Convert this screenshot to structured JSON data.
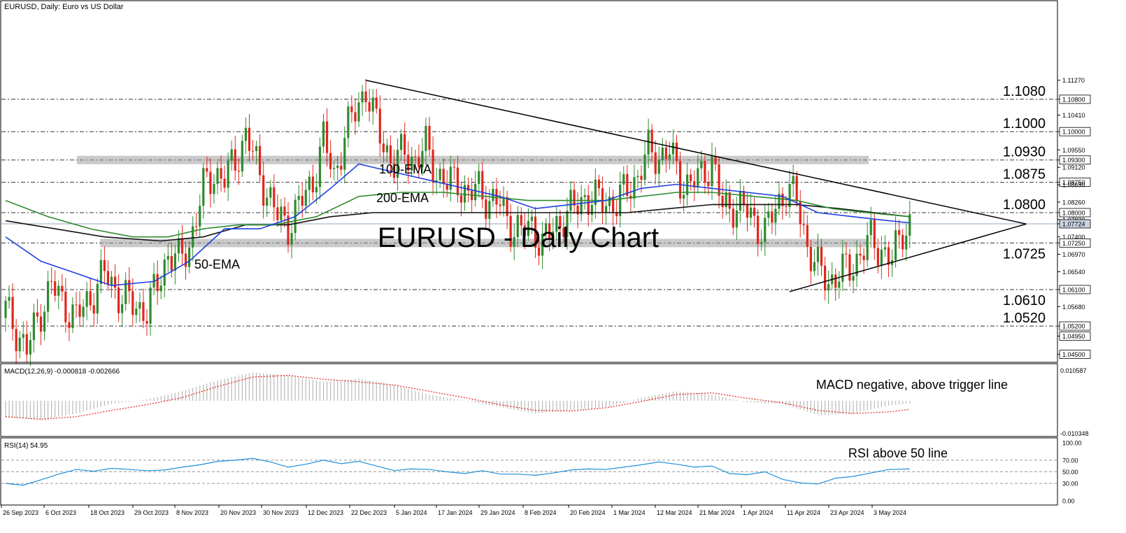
{
  "chart_data": {
    "type": "candlestick",
    "title": "EURUSD - Daily Chart",
    "header": "EURUSD, Daily:  Euro vs US Dollar",
    "ylim": [
      1.0432,
      1.132
    ],
    "price_ticks": [
      "1.11270",
      "1.10800",
      "1.10410",
      "1.10000",
      "1.09550",
      "1.09300",
      "1.09120",
      "1.08750",
      "1.08690",
      "1.08260",
      "1.08000",
      "1.07830",
      "1.07724",
      "1.07400",
      "1.07250",
      "1.06970",
      "1.06540",
      "1.06100",
      "1.05680",
      "1.05200",
      "1.04950",
      "1.04500"
    ],
    "highlighted_ticks": [
      "1.10800",
      "1.10000",
      "1.09300",
      "1.08750",
      "1.08000",
      "1.07724",
      "1.07250",
      "1.06100",
      "1.05200",
      "1.04950",
      "1.04500"
    ],
    "current_price": "1.07724",
    "levels": [
      {
        "value": 1.108,
        "label": "1.1080"
      },
      {
        "value": 1.1,
        "label": "1.1000"
      },
      {
        "value": 1.093,
        "label": "1.0930"
      },
      {
        "value": 1.0875,
        "label": "1.0875"
      },
      {
        "value": 1.08,
        "label": "1.0800"
      },
      {
        "value": 1.0725,
        "label": "1.0725"
      },
      {
        "value": 1.061,
        "label": "1.0610"
      },
      {
        "value": 1.052,
        "label": "1.0520"
      }
    ],
    "support_zones": [
      1.093,
      1.0725
    ],
    "ema_labels": {
      "ema50": "50-EMA",
      "ema100": "100-EMA",
      "ema200": "200-EMA"
    },
    "x_ticks": [
      "26 Sep 2023",
      "6 Oct 2023",
      "18 Oct 2023",
      "29 Oct 2023",
      "8 Nov 2023",
      "20 Nov 2023",
      "30 Nov 2023",
      "12 Dec 2023",
      "22 Dec 2023",
      "5 Jan 2024",
      "17 Jan 2024",
      "29 Jan 2024",
      "8 Feb 2024",
      "20 Feb 2024",
      "1 Mar 2024",
      "12 Mar 2024",
      "21 Mar 2024",
      "1 Apr 2024",
      "11 Apr 2024",
      "23 Apr 2024",
      "3 May 2024"
    ],
    "close_path": [
      [
        0,
        1.056
      ],
      [
        3,
        1.051
      ],
      [
        6,
        1.046
      ],
      [
        10,
        1.056
      ],
      [
        13,
        1.062
      ],
      [
        16,
        1.058
      ],
      [
        20,
        1.054
      ],
      [
        24,
        1.059
      ],
      [
        28,
        1.065
      ],
      [
        32,
        1.06
      ],
      [
        36,
        1.057
      ],
      [
        40,
        1.056
      ],
      [
        43,
        1.062
      ],
      [
        46,
        1.07
      ],
      [
        49,
        1.068
      ],
      [
        52,
        1.072
      ],
      [
        56,
        1.086
      ],
      [
        59,
        1.09
      ],
      [
        62,
        1.088
      ],
      [
        65,
        1.093
      ],
      [
        68,
        1.099
      ],
      [
        71,
        1.092
      ],
      [
        74,
        1.085
      ],
      [
        77,
        1.079
      ],
      [
        80,
        1.077
      ],
      [
        84,
        1.083
      ],
      [
        87,
        1.088
      ],
      [
        90,
        1.098
      ],
      [
        93,
        1.089
      ],
      [
        96,
        1.099
      ],
      [
        100,
        1.107
      ],
      [
        102,
        1.111
      ],
      [
        104,
        1.104
      ],
      [
        107,
        1.097
      ],
      [
        110,
        1.092
      ],
      [
        113,
        1.095
      ],
      [
        116,
        1.093
      ],
      [
        119,
        1.096
      ],
      [
        122,
        1.09
      ],
      [
        125,
        1.087
      ],
      [
        128,
        1.088
      ],
      [
        131,
        1.084
      ],
      [
        134,
        1.086
      ],
      [
        137,
        1.083
      ],
      [
        140,
        1.082
      ],
      [
        143,
        1.077
      ],
      [
        146,
        1.075
      ],
      [
        149,
        1.077
      ],
      [
        152,
        1.072
      ],
      [
        155,
        1.076
      ],
      [
        158,
        1.079
      ],
      [
        161,
        1.081
      ],
      [
        164,
        1.084
      ],
      [
        167,
        1.083
      ],
      [
        170,
        1.083
      ],
      [
        173,
        1.082
      ],
      [
        176,
        1.086
      ],
      [
        179,
        1.089
      ],
      [
        182,
        1.095
      ],
      [
        185,
        1.094
      ],
      [
        188,
        1.095
      ],
      [
        191,
        1.088
      ],
      [
        194,
        1.087
      ],
      [
        197,
        1.089
      ],
      [
        200,
        1.093
      ],
      [
        203,
        1.081
      ],
      [
        206,
        1.082
      ],
      [
        209,
        1.081
      ],
      [
        212,
        1.078
      ],
      [
        215,
        1.075
      ],
      [
        218,
        1.081
      ],
      [
        221,
        1.086
      ],
      [
        224,
        1.083
      ],
      [
        227,
        1.072
      ],
      [
        230,
        1.066
      ],
      [
        233,
        1.063
      ],
      [
        236,
        1.065
      ],
      [
        239,
        1.066
      ],
      [
        242,
        1.07
      ],
      [
        245,
        1.073
      ],
      [
        248,
        1.071
      ],
      [
        251,
        1.068
      ],
      [
        254,
        1.076
      ],
      [
        256,
        1.0772
      ]
    ],
    "ema50_path": [
      [
        0,
        1.074
      ],
      [
        10,
        1.068
      ],
      [
        20,
        1.065
      ],
      [
        30,
        1.062
      ],
      [
        42,
        1.063
      ],
      [
        52,
        1.068
      ],
      [
        62,
        1.076
      ],
      [
        72,
        1.076
      ],
      [
        82,
        1.079
      ],
      [
        92,
        1.086
      ],
      [
        100,
        1.092
      ],
      [
        110,
        1.09
      ],
      [
        120,
        1.088
      ],
      [
        130,
        1.086
      ],
      [
        140,
        1.084
      ],
      [
        150,
        1.081
      ],
      [
        160,
        1.082
      ],
      [
        170,
        1.083
      ],
      [
        180,
        1.086
      ],
      [
        190,
        1.087
      ],
      [
        200,
        1.086
      ],
      [
        210,
        1.085
      ],
      [
        220,
        1.084
      ],
      [
        230,
        1.08
      ],
      [
        240,
        1.079
      ],
      [
        250,
        1.078
      ],
      [
        256,
        1.0775
      ]
    ],
    "ema100_path": [
      [
        0,
        1.083
      ],
      [
        12,
        1.079
      ],
      [
        24,
        1.076
      ],
      [
        36,
        1.074
      ],
      [
        46,
        1.074
      ],
      [
        56,
        1.076
      ],
      [
        66,
        1.077
      ],
      [
        76,
        1.077
      ],
      [
        88,
        1.079
      ],
      [
        100,
        1.084
      ],
      [
        112,
        1.085
      ],
      [
        124,
        1.085
      ],
      [
        136,
        1.084
      ],
      [
        148,
        1.083
      ],
      [
        160,
        1.083
      ],
      [
        170,
        1.083
      ],
      [
        180,
        1.084
      ],
      [
        190,
        1.085
      ],
      [
        200,
        1.085
      ],
      [
        212,
        1.084
      ],
      [
        224,
        1.083
      ],
      [
        234,
        1.081
      ],
      [
        244,
        1.08
      ],
      [
        256,
        1.079
      ]
    ],
    "ema200_path": [
      [
        0,
        1.078
      ],
      [
        14,
        1.076
      ],
      [
        28,
        1.074
      ],
      [
        44,
        1.073
      ],
      [
        56,
        1.074
      ],
      [
        68,
        1.077
      ],
      [
        80,
        1.077
      ],
      [
        92,
        1.079
      ],
      [
        104,
        1.08
      ],
      [
        116,
        1.08
      ],
      [
        128,
        1.08
      ],
      [
        140,
        1.08
      ],
      [
        152,
        1.08
      ],
      [
        164,
        1.08
      ],
      [
        176,
        1.08
      ],
      [
        188,
        1.081
      ],
      [
        200,
        1.082
      ],
      [
        212,
        1.082
      ],
      [
        224,
        1.082
      ],
      [
        236,
        1.081
      ],
      [
        246,
        1.08
      ],
      [
        256,
        1.079
      ]
    ],
    "trendlines": [
      {
        "from": [
          102,
          1.1127
        ],
        "to": [
          289,
          1.0772
        ]
      },
      {
        "from": [
          222,
          1.0605
        ],
        "to": [
          289,
          1.0772
        ]
      }
    ],
    "macd": {
      "label": "MACD(12,26,9) -0.000818 -0.002666",
      "ylim_labels": [
        "0.010587",
        "-0.010348"
      ],
      "ylim": [
        -0.010348,
        0.010587
      ],
      "annotation": "MACD negative, above trigger line",
      "histogram_path": [
        [
          0,
          -0.005
        ],
        [
          10,
          -0.006
        ],
        [
          20,
          -0.004
        ],
        [
          30,
          -0.001
        ],
        [
          40,
          0.0005
        ],
        [
          50,
          0.003
        ],
        [
          60,
          0.0065
        ],
        [
          70,
          0.009
        ],
        [
          80,
          0.008
        ],
        [
          90,
          0.006
        ],
        [
          100,
          0.007
        ],
        [
          110,
          0.005
        ],
        [
          120,
          0.002
        ],
        [
          130,
          0.0
        ],
        [
          140,
          -0.002
        ],
        [
          150,
          -0.004
        ],
        [
          160,
          -0.003
        ],
        [
          170,
          -0.002
        ],
        [
          180,
          0.001
        ],
        [
          190,
          0.003
        ],
        [
          200,
          0.002
        ],
        [
          210,
          -0.0005
        ],
        [
          220,
          -0.001
        ],
        [
          230,
          -0.0045
        ],
        [
          240,
          -0.004
        ],
        [
          250,
          -0.0015
        ],
        [
          256,
          -0.0008
        ]
      ],
      "signal_path": [
        [
          0,
          -0.005
        ],
        [
          10,
          -0.0058
        ],
        [
          20,
          -0.005
        ],
        [
          30,
          -0.003
        ],
        [
          40,
          -0.0012
        ],
        [
          50,
          0.001
        ],
        [
          60,
          0.0045
        ],
        [
          70,
          0.0075
        ],
        [
          80,
          0.008
        ],
        [
          90,
          0.0068
        ],
        [
          100,
          0.006
        ],
        [
          110,
          0.005
        ],
        [
          120,
          0.003
        ],
        [
          130,
          0.001
        ],
        [
          140,
          -0.0012
        ],
        [
          150,
          -0.003
        ],
        [
          160,
          -0.0032
        ],
        [
          170,
          -0.0022
        ],
        [
          180,
          -0.0002
        ],
        [
          190,
          0.002
        ],
        [
          200,
          0.0025
        ],
        [
          210,
          0.0008
        ],
        [
          220,
          -0.0006
        ],
        [
          230,
          -0.003
        ],
        [
          240,
          -0.004
        ],
        [
          250,
          -0.0035
        ],
        [
          256,
          -0.0027
        ]
      ]
    },
    "rsi": {
      "label": "RSI(14) 54.95",
      "ticks": [
        "100.00",
        "70.00",
        "50.00",
        "30.00",
        "0.00"
      ],
      "ylim": [
        0,
        100
      ],
      "annotation": "RSI above 50 line",
      "path": [
        [
          0,
          30
        ],
        [
          5,
          27
        ],
        [
          10,
          36
        ],
        [
          15,
          46
        ],
        [
          20,
          54
        ],
        [
          25,
          51
        ],
        [
          30,
          56
        ],
        [
          35,
          54
        ],
        [
          40,
          52
        ],
        [
          45,
          53
        ],
        [
          50,
          58
        ],
        [
          55,
          62
        ],
        [
          60,
          68
        ],
        [
          65,
          70
        ],
        [
          70,
          73
        ],
        [
          75,
          67
        ],
        [
          80,
          58
        ],
        [
          85,
          63
        ],
        [
          90,
          70
        ],
        [
          95,
          64
        ],
        [
          100,
          68
        ],
        [
          105,
          60
        ],
        [
          110,
          52
        ],
        [
          115,
          55
        ],
        [
          120,
          54
        ],
        [
          125,
          50
        ],
        [
          130,
          47
        ],
        [
          135,
          52
        ],
        [
          140,
          46
        ],
        [
          145,
          46
        ],
        [
          150,
          44
        ],
        [
          155,
          48
        ],
        [
          160,
          53
        ],
        [
          165,
          55
        ],
        [
          170,
          54
        ],
        [
          175,
          58
        ],
        [
          180,
          62
        ],
        [
          185,
          67
        ],
        [
          190,
          63
        ],
        [
          195,
          58
        ],
        [
          200,
          60
        ],
        [
          205,
          47
        ],
        [
          210,
          45
        ],
        [
          215,
          50
        ],
        [
          220,
          37
        ],
        [
          225,
          31
        ],
        [
          230,
          29
        ],
        [
          235,
          39
        ],
        [
          240,
          42
        ],
        [
          245,
          48
        ],
        [
          250,
          54
        ],
        [
          256,
          55
        ]
      ]
    }
  }
}
